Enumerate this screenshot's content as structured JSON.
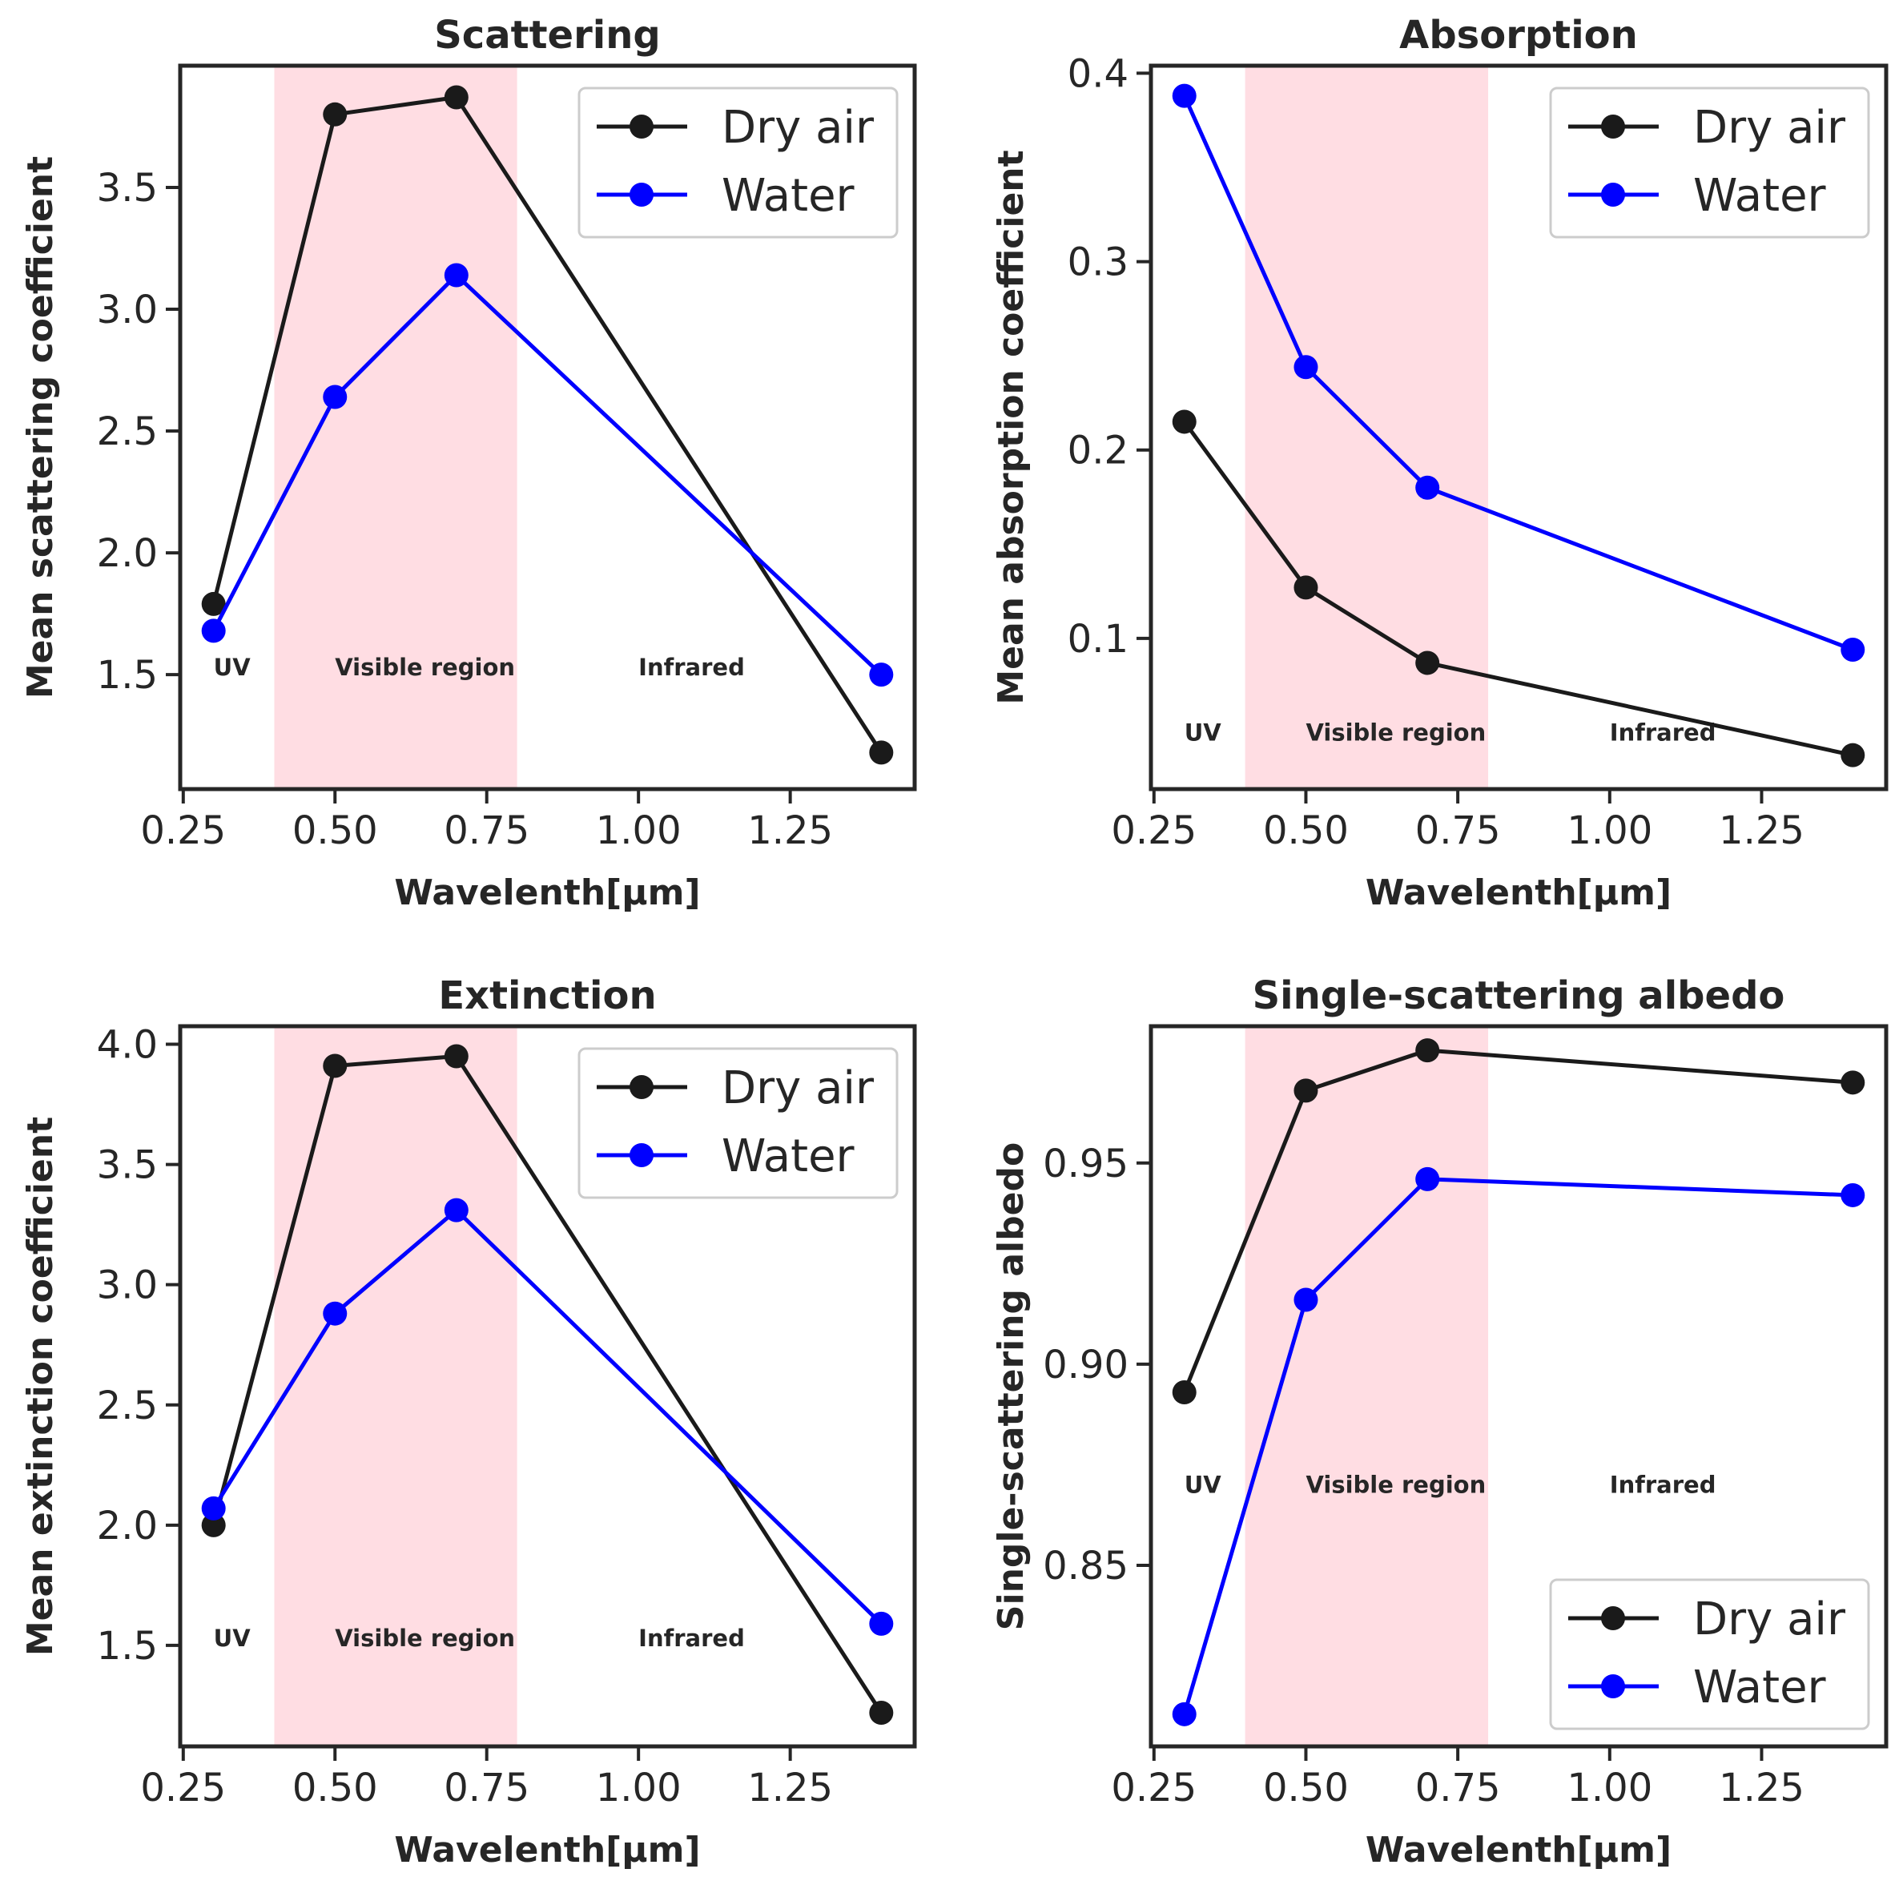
{
  "chart_data": [
    {
      "type": "line",
      "title": "Scattering",
      "xlabel": "Wavelenth[μm]",
      "ylabel": "Mean scattering coefficient",
      "x": [
        0.3,
        0.5,
        0.7,
        1.4
      ],
      "series": [
        {
          "name": "Dry air",
          "color": "#1a1a1a",
          "values": [
            1.79,
            3.8,
            3.87,
            1.18
          ]
        },
        {
          "name": "Water",
          "color": "#0000ff",
          "values": [
            1.68,
            2.64,
            3.14,
            1.5
          ]
        }
      ],
      "xlim": [
        0.245,
        1.455
      ],
      "ylim": [
        1.03,
        4.0
      ],
      "xticks": [
        0.25,
        0.5,
        0.75,
        1.0,
        1.25
      ],
      "xtick_labels": [
        "0.25",
        "0.50",
        "0.75",
        "1.00",
        "1.25"
      ],
      "yticks": [
        1.5,
        2.0,
        2.5,
        3.0,
        3.5
      ],
      "ytick_labels": [
        "1.5",
        "2.0",
        "2.5",
        "3.0",
        "3.5"
      ],
      "shaded_band": {
        "x_from": 0.4,
        "x_to": 0.8,
        "color": "#ffdde3"
      },
      "region_labels": [
        {
          "text": "UV",
          "x": 0.3,
          "y": 1.53
        },
        {
          "text": "Visible region",
          "x": 0.5,
          "y": 1.53
        },
        {
          "text": "Infrared",
          "x": 1.0,
          "y": 1.53
        }
      ],
      "legend": {
        "position": "upper right"
      }
    },
    {
      "type": "line",
      "title": "Absorption",
      "xlabel": "Wavelenth[μm]",
      "ylabel": "Mean absorption coefficient",
      "x": [
        0.3,
        0.5,
        0.7,
        1.4
      ],
      "series": [
        {
          "name": "Dry air",
          "color": "#1a1a1a",
          "values": [
            0.215,
            0.127,
            0.087,
            0.038
          ]
        },
        {
          "name": "Water",
          "color": "#0000ff",
          "values": [
            0.388,
            0.244,
            0.18,
            0.094
          ]
        }
      ],
      "xlim": [
        0.245,
        1.455
      ],
      "ylim": [
        0.02,
        0.404
      ],
      "xticks": [
        0.25,
        0.5,
        0.75,
        1.0,
        1.25
      ],
      "xtick_labels": [
        "0.25",
        "0.50",
        "0.75",
        "1.00",
        "1.25"
      ],
      "yticks": [
        0.1,
        0.2,
        0.3,
        0.4
      ],
      "ytick_labels": [
        "0.1",
        "0.2",
        "0.3",
        "0.4"
      ],
      "shaded_band": {
        "x_from": 0.4,
        "x_to": 0.8,
        "color": "#ffdde3"
      },
      "region_labels": [
        {
          "text": "UV",
          "x": 0.3,
          "y": 0.05
        },
        {
          "text": "Visible region",
          "x": 0.5,
          "y": 0.05
        },
        {
          "text": "Infrared",
          "x": 1.0,
          "y": 0.05
        }
      ],
      "legend": {
        "position": "upper right"
      }
    },
    {
      "type": "line",
      "title": "Extinction",
      "xlabel": "Wavelenth[μm]",
      "ylabel": "Mean extinction coefficient",
      "x": [
        0.3,
        0.5,
        0.7,
        1.4
      ],
      "series": [
        {
          "name": "Dry air",
          "color": "#1a1a1a",
          "values": [
            2.0,
            3.91,
            3.95,
            1.22
          ]
        },
        {
          "name": "Water",
          "color": "#0000ff",
          "values": [
            2.07,
            2.88,
            3.31,
            1.59
          ]
        }
      ],
      "xlim": [
        0.245,
        1.455
      ],
      "ylim": [
        1.08,
        4.075
      ],
      "xticks": [
        0.25,
        0.5,
        0.75,
        1.0,
        1.25
      ],
      "xtick_labels": [
        "0.25",
        "0.50",
        "0.75",
        "1.00",
        "1.25"
      ],
      "yticks": [
        1.5,
        2.0,
        2.5,
        3.0,
        3.5,
        4.0
      ],
      "ytick_labels": [
        "1.5",
        "2.0",
        "2.5",
        "3.0",
        "3.5",
        "4.0"
      ],
      "shaded_band": {
        "x_from": 0.4,
        "x_to": 0.8,
        "color": "#ffdde3"
      },
      "region_labels": [
        {
          "text": "UV",
          "x": 0.3,
          "y": 1.53
        },
        {
          "text": "Visible region",
          "x": 0.5,
          "y": 1.53
        },
        {
          "text": "Infrared",
          "x": 1.0,
          "y": 1.53
        }
      ],
      "legend": {
        "position": "upper right"
      }
    },
    {
      "type": "line",
      "title": "Single-scattering albedo",
      "xlabel": "Wavelenth[μm]",
      "ylabel": "Single-scattering albedo",
      "x": [
        0.3,
        0.5,
        0.7,
        1.4
      ],
      "series": [
        {
          "name": "Dry air",
          "color": "#1a1a1a",
          "values": [
            0.893,
            0.968,
            0.978,
            0.97
          ]
        },
        {
          "name": "Water",
          "color": "#0000ff",
          "values": [
            0.813,
            0.916,
            0.946,
            0.942
          ]
        }
      ],
      "xlim": [
        0.245,
        1.455
      ],
      "ylim": [
        0.805,
        0.984
      ],
      "xticks": [
        0.25,
        0.5,
        0.75,
        1.0,
        1.25
      ],
      "xtick_labels": [
        "0.25",
        "0.50",
        "0.75",
        "1.00",
        "1.25"
      ],
      "yticks": [
        0.85,
        0.9,
        0.95
      ],
      "ytick_labels": [
        "0.85",
        "0.90",
        "0.95"
      ],
      "shaded_band": {
        "x_from": 0.4,
        "x_to": 0.8,
        "color": "#ffdde3"
      },
      "region_labels": [
        {
          "text": "UV",
          "x": 0.3,
          "y": 0.87
        },
        {
          "text": "Visible region",
          "x": 0.5,
          "y": 0.87
        },
        {
          "text": "Infrared",
          "x": 1.0,
          "y": 0.87
        }
      ],
      "legend": {
        "position": "lower right"
      }
    }
  ]
}
